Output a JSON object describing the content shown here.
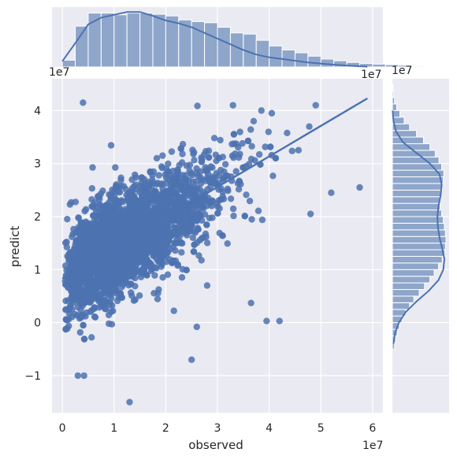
{
  "chart_data": {
    "type": "scatter",
    "title": "",
    "xlabel": "observed",
    "ylabel": "predict",
    "xlim": [
      -2000000,
      62000000
    ],
    "ylim": [
      -17000000,
      46000000
    ],
    "x_ticks": [
      0,
      10000000,
      20000000,
      30000000,
      40000000,
      50000000,
      60000000
    ],
    "x_tick_labels": [
      "0",
      "1",
      "2",
      "3",
      "4",
      "5",
      "6"
    ],
    "y_ticks": [
      -10000000,
      0,
      10000000,
      20000000,
      30000000,
      40000000
    ],
    "y_tick_labels": [
      "−1",
      "0",
      "1",
      "2",
      "3",
      "4"
    ],
    "x_offset_label": "1e7",
    "y_offset_label": "1e7",
    "marginal_x_offset_label": "1e7",
    "marginal_x_offset_label_right": "1e7",
    "marginal_y_offset_label": "1e7",
    "grid": true,
    "color": "#4c72b0",
    "regression": {
      "x0": 0,
      "y0": 8300000,
      "x1": 59000000,
      "y1": 42300000
    },
    "scatter_points_approx_count": 3000,
    "outliers": [
      {
        "x": 13000000,
        "y": -15000000
      },
      {
        "x": 3000000,
        "y": -10000000
      },
      {
        "x": 4200000,
        "y": -10000000
      },
      {
        "x": 25000000,
        "y": -7000000
      },
      {
        "x": 26000000,
        "y": -800000
      },
      {
        "x": 36500000,
        "y": 3700000
      },
      {
        "x": 42000000,
        "y": 300000
      },
      {
        "x": 39500000,
        "y": 300000
      },
      {
        "x": 28000000,
        "y": 7000000
      },
      {
        "x": 48000000,
        "y": 20500000
      },
      {
        "x": 52000000,
        "y": 24500000
      },
      {
        "x": 57500000,
        "y": 25500000
      },
      {
        "x": 4000000,
        "y": 41500000
      },
      {
        "x": 49000000,
        "y": 41000000
      },
      {
        "x": 33000000,
        "y": 41000000
      },
      {
        "x": 38500000,
        "y": 40000000
      },
      {
        "x": 37000000,
        "y": 38000000
      },
      {
        "x": 40500000,
        "y": 39500000
      }
    ],
    "marginal_x": {
      "bin_edges_start": 0,
      "bin_width": 2500000,
      "counts": [
        0.12,
        0.72,
        0.95,
        0.95,
        0.92,
        0.95,
        0.95,
        0.93,
        0.9,
        0.83,
        0.8,
        0.78,
        0.7,
        0.6,
        0.58,
        0.47,
        0.37,
        0.3,
        0.25,
        0.19,
        0.14,
        0.11,
        0.08,
        0.06,
        0.05,
        0.04,
        0.03,
        0.015,
        0.01,
        0.005
      ],
      "kde_x": [
        0,
        2500000,
        5000000,
        7500000,
        10000000,
        12500000,
        15000000,
        17500000,
        20000000,
        22500000,
        25000000,
        27500000,
        30000000,
        32500000,
        35000000,
        37500000,
        40000000,
        42500000,
        45000000,
        47500000,
        50000000,
        52500000,
        55000000,
        57500000,
        59000000
      ],
      "kde_y": [
        0.1,
        0.42,
        0.75,
        0.87,
        0.92,
        0.97,
        0.97,
        0.9,
        0.82,
        0.77,
        0.7,
        0.6,
        0.5,
        0.4,
        0.3,
        0.22,
        0.17,
        0.14,
        0.11,
        0.08,
        0.06,
        0.04,
        0.025,
        0.012,
        0.005
      ]
    },
    "marginal_y": {
      "bin_edges_start": -5000000,
      "bin_width": 1250000,
      "counts": [
        0.04,
        0.06,
        0.09,
        0.13,
        0.18,
        0.25,
        0.32,
        0.4,
        0.5,
        0.6,
        0.7,
        0.78,
        0.86,
        0.93,
        0.98,
        0.99,
        1.0,
        0.99,
        0.97,
        0.95,
        0.92,
        0.89,
        0.88,
        0.9,
        0.93,
        0.95,
        0.96,
        0.92,
        0.87,
        0.8,
        0.7,
        0.58,
        0.45,
        0.32,
        0.22,
        0.14,
        0.08,
        0.04,
        0.02,
        0.01
      ],
      "kde_y": [
        -4000000,
        -2000000,
        0,
        2000000,
        4000000,
        6000000,
        8000000,
        10000000,
        12000000,
        14000000,
        16000000,
        18000000,
        20000000,
        22000000,
        24000000,
        26000000,
        28000000,
        30000000,
        32000000,
        34000000,
        36000000,
        38000000,
        40000000
      ],
      "kde_x": [
        0.02,
        0.05,
        0.12,
        0.25,
        0.45,
        0.68,
        0.86,
        0.95,
        0.97,
        0.93,
        0.88,
        0.85,
        0.84,
        0.86,
        0.9,
        0.92,
        0.88,
        0.7,
        0.45,
        0.2,
        0.07,
        0.02,
        0.005
      ]
    }
  }
}
